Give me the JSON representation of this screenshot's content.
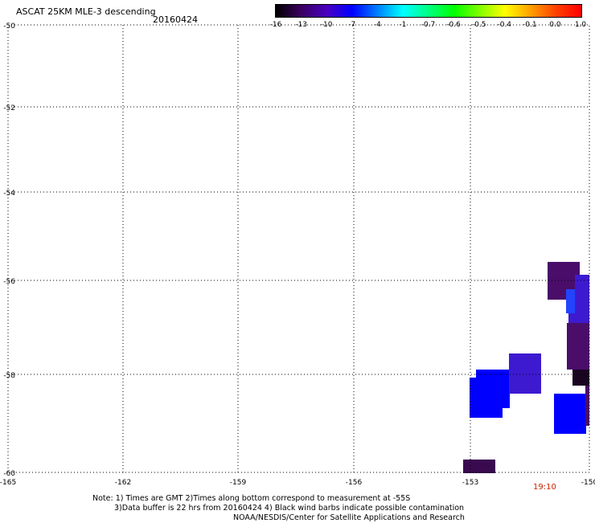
{
  "header": {
    "title": "ASCAT 25KM MLE-3 descending",
    "date": "20160424"
  },
  "colorbar": {
    "labels": [
      "-16",
      "-13",
      "-10",
      "-7",
      "-4",
      "-1",
      "-0.7",
      "-0.6",
      "-0.5",
      "-0.4",
      "-0.1",
      "0.0",
      "1.0"
    ],
    "gradient": [
      "#000000",
      "#3a0060",
      "#4a00c0",
      "#0000ff",
      "#0080ff",
      "#00ffff",
      "#00ff80",
      "#00ff00",
      "#80ff00",
      "#ffff00",
      "#ffa000",
      "#ff4000",
      "#ff0000"
    ]
  },
  "map": {
    "lat_labels": [
      "-50",
      "-52",
      "-54",
      "-56",
      "-58",
      "-60"
    ],
    "lon_labels": [
      "-165",
      "-162",
      "-159",
      "-156",
      "-153",
      "-150"
    ],
    "time_label": "19:10",
    "swath_colors": {
      "dark_purple": "#3a0a50",
      "purple": "#4a0d6a",
      "violet": "#3d1ad0",
      "blue": "#0000ff",
      "mid_blue": "#2244ff",
      "near_black": "#1a0520"
    }
  },
  "notes": {
    "line1": "Note: 1) Times are GMT 2)Times along bottom correspond to measurement at -55S",
    "line2": "3)Data buffer is 22 hrs from 20160424 4) Black wind barbs indicate possible contamination",
    "line3": "NOAA/NESDIS/Center for Satellite Applications and Research"
  }
}
